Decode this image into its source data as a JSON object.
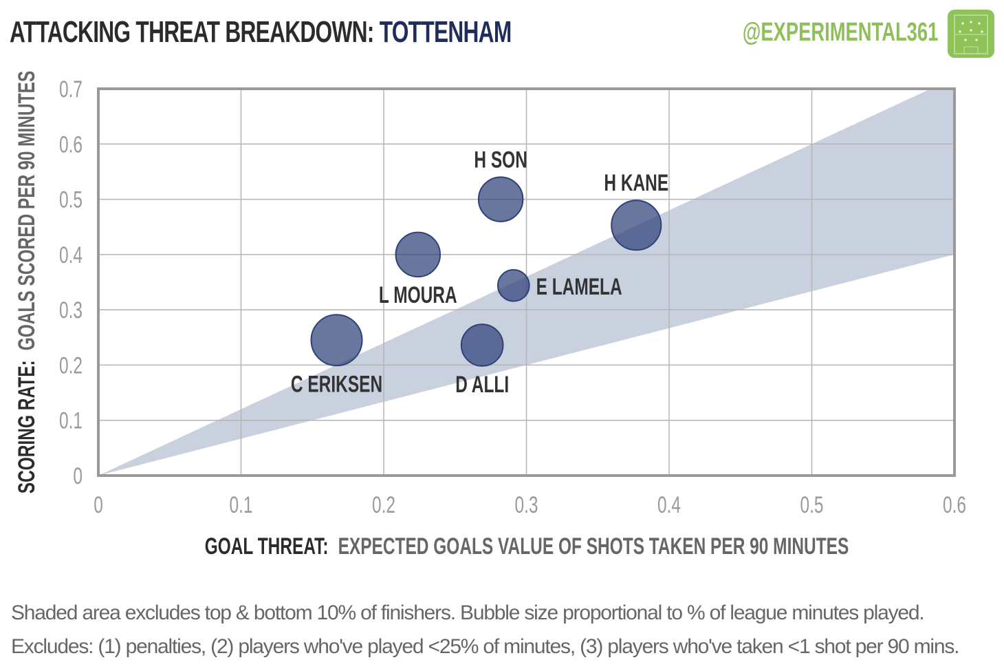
{
  "header": {
    "title_prefix": "ATTACKING THREAT BREAKDOWN:",
    "title_team": "TOTTENHAM",
    "handle": "@EXPERIMENTAL361"
  },
  "chart_data": {
    "type": "scatter",
    "xlabel_bold": "GOAL THREAT:",
    "xlabel_rest": "EXPECTED GOALS VALUE OF SHOTS TAKEN PER 90 MINUTES",
    "ylabel_bold": "SCORING RATE:",
    "ylabel_rest": "GOALS SCORED PER 90 MINUTES",
    "xlim": [
      0,
      0.6
    ],
    "ylim": [
      0,
      0.7
    ],
    "xticks": [
      "0",
      "0.1",
      "0.2",
      "0.3",
      "0.4",
      "0.5",
      "0.6"
    ],
    "yticks": [
      "0",
      "0.1",
      "0.2",
      "0.3",
      "0.4",
      "0.5",
      "0.6",
      "0.7"
    ],
    "grid": true,
    "shaded_band": {
      "lower_slope": 0.667,
      "upper_slope": 1.2
    },
    "points": [
      {
        "name": "H SON",
        "x": 0.282,
        "y": 0.5,
        "size": 0.76,
        "label_pos": "top"
      },
      {
        "name": "H KANE",
        "x": 0.377,
        "y": 0.453,
        "size": 0.95,
        "label_pos": "top"
      },
      {
        "name": "L MOURA",
        "x": 0.224,
        "y": 0.4,
        "size": 0.76,
        "label_pos": "bottom"
      },
      {
        "name": "E LAMELA",
        "x": 0.291,
        "y": 0.344,
        "size": 0.38,
        "label_pos": "right"
      },
      {
        "name": "C ERIKSEN",
        "x": 0.167,
        "y": 0.245,
        "size": 1.0,
        "label_pos": "bottom"
      },
      {
        "name": "D ALLI",
        "x": 0.269,
        "y": 0.236,
        "size": 0.67,
        "label_pos": "bottom"
      }
    ],
    "colors": {
      "bubble": "#2f4178",
      "band": "#c9d0de",
      "grid": "#b5b5b5",
      "frame": "#999999"
    }
  },
  "footnote": {
    "line1": "Shaded area excludes top & bottom 10% of finishers. Bubble size proportional to % of league minutes played.",
    "line2": "Excludes: (1) penalties, (2) players who've played <25% of minutes, (3) players who've taken <1 shot per 90 mins."
  }
}
